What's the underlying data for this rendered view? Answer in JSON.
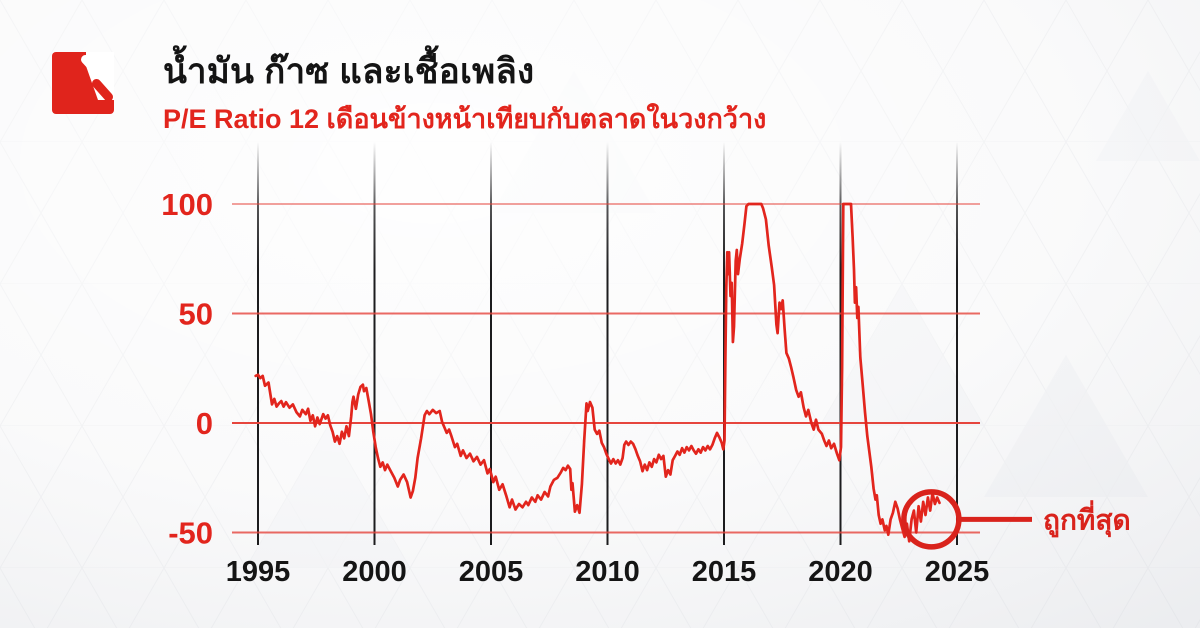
{
  "header": {
    "title": "น้ำมัน ก๊าซ และเชื้อเพลิง",
    "subtitle": "P/E Ratio 12 เดือนข้างหน้าเทียบกับตลาดในวงกว้าง"
  },
  "logo": {
    "name": "brand-logo-red-square-with-slashes"
  },
  "colors": {
    "accent_red": "#e2251d",
    "series_red": "#e2251d",
    "grid_red": "#e6453d",
    "annotation_red": "#d9231c",
    "axis_line_black": "#1c1c1e",
    "tick_label_black": "#151515",
    "title_black": "#141414"
  },
  "chart_data": {
    "type": "line",
    "title": "น้ำมัน ก๊าซ และเชื้อเพลิง",
    "subtitle": "P/E Ratio 12 เดือนข้างหน้าเทียบกับตลาดในวงกว้าง",
    "xlabel": "",
    "ylabel": "",
    "x_ticks": [
      1995,
      2000,
      2005,
      2010,
      2015,
      2020,
      2025
    ],
    "y_ticks": [
      100,
      50,
      0,
      -50
    ],
    "xlim": [
      1993.8,
      2026
    ],
    "ylim": [
      -58,
      108
    ],
    "grid": "horizontal red lines at y ticks, vertical black lines at x ticks",
    "legend_position": "none",
    "annotation": {
      "label": "ถูกที่สุด",
      "circle_center": {
        "year": 2023.9,
        "value": -44
      }
    },
    "series": [
      {
        "name": "P/E Ratio 12M forward relative to broad market (%)",
        "points": [
          [
            1994.9,
            21.5
          ],
          [
            1995,
            22
          ],
          [
            1995.1,
            20.5
          ],
          [
            1995.2,
            21.5
          ],
          [
            1995.3,
            17
          ],
          [
            1995.45,
            18.5
          ],
          [
            1995.6,
            8.5
          ],
          [
            1995.7,
            11
          ],
          [
            1995.8,
            7.5
          ],
          [
            1995.9,
            9
          ],
          [
            1996,
            10
          ],
          [
            1996.1,
            7.5
          ],
          [
            1996.2,
            9.5
          ],
          [
            1996.35,
            7
          ],
          [
            1996.5,
            8.5
          ],
          [
            1996.65,
            5
          ],
          [
            1996.8,
            3
          ],
          [
            1996.9,
            6
          ],
          [
            1997.05,
            4
          ],
          [
            1997.15,
            6.5
          ],
          [
            1997.25,
            1
          ],
          [
            1997.35,
            3.5
          ],
          [
            1997.45,
            -1.5
          ],
          [
            1997.55,
            2.5
          ],
          [
            1997.65,
            -0.5
          ],
          [
            1997.8,
            4
          ],
          [
            1997.9,
            2
          ],
          [
            1998,
            3.5
          ],
          [
            1998.1,
            -1
          ],
          [
            1998.2,
            -4
          ],
          [
            1998.3,
            -8.5
          ],
          [
            1998.4,
            -6
          ],
          [
            1998.5,
            -9.5
          ],
          [
            1998.6,
            -4
          ],
          [
            1998.7,
            -7
          ],
          [
            1998.8,
            -1.5
          ],
          [
            1998.9,
            -6
          ],
          [
            1999,
            3
          ],
          [
            1999.05,
            9.5
          ],
          [
            1999.1,
            12
          ],
          [
            1999.2,
            6.5
          ],
          [
            1999.3,
            13
          ],
          [
            1999.4,
            16.5
          ],
          [
            1999.5,
            17.5
          ],
          [
            1999.55,
            14.5
          ],
          [
            1999.65,
            16
          ],
          [
            1999.75,
            10
          ],
          [
            1999.85,
            4
          ],
          [
            1999.95,
            -4
          ],
          [
            2000.05,
            -11
          ],
          [
            2000.15,
            -16
          ],
          [
            2000.25,
            -20
          ],
          [
            2000.35,
            -18
          ],
          [
            2000.45,
            -21.5
          ],
          [
            2000.55,
            -19
          ],
          [
            2000.7,
            -22
          ],
          [
            2000.85,
            -25
          ],
          [
            2001,
            -29
          ],
          [
            2001.1,
            -26
          ],
          [
            2001.25,
            -23.5
          ],
          [
            2001.4,
            -27
          ],
          [
            2001.55,
            -34
          ],
          [
            2001.65,
            -31
          ],
          [
            2001.75,
            -25
          ],
          [
            2001.85,
            -16
          ],
          [
            2002,
            -7
          ],
          [
            2002.15,
            3.5
          ],
          [
            2002.25,
            5.5
          ],
          [
            2002.35,
            4
          ],
          [
            2002.5,
            6
          ],
          [
            2002.65,
            4.5
          ],
          [
            2002.8,
            5.5
          ],
          [
            2002.9,
            0.5
          ],
          [
            2003,
            -2
          ],
          [
            2003.1,
            -4.5
          ],
          [
            2003.2,
            -3
          ],
          [
            2003.3,
            -6
          ],
          [
            2003.45,
            -11
          ],
          [
            2003.55,
            -9.5
          ],
          [
            2003.7,
            -15
          ],
          [
            2003.8,
            -12.5
          ],
          [
            2003.95,
            -16
          ],
          [
            2004.1,
            -14
          ],
          [
            2004.25,
            -17.5
          ],
          [
            2004.4,
            -15.5
          ],
          [
            2004.55,
            -19
          ],
          [
            2004.7,
            -17
          ],
          [
            2004.85,
            -23
          ],
          [
            2004.95,
            -21
          ],
          [
            2005.1,
            -27
          ],
          [
            2005.2,
            -24.5
          ],
          [
            2005.35,
            -30.5
          ],
          [
            2005.5,
            -28
          ],
          [
            2005.65,
            -33
          ],
          [
            2005.8,
            -38.5
          ],
          [
            2005.9,
            -35
          ],
          [
            2006.05,
            -39.5
          ],
          [
            2006.2,
            -37
          ],
          [
            2006.35,
            -38.5
          ],
          [
            2006.5,
            -36
          ],
          [
            2006.6,
            -37.5
          ],
          [
            2006.75,
            -34
          ],
          [
            2006.9,
            -36
          ],
          [
            2007,
            -33
          ],
          [
            2007.15,
            -35
          ],
          [
            2007.3,
            -31.5
          ],
          [
            2007.45,
            -33.5
          ],
          [
            2007.55,
            -29
          ],
          [
            2007.7,
            -26
          ],
          [
            2007.85,
            -25
          ],
          [
            2008,
            -22.5
          ],
          [
            2008.1,
            -20.5
          ],
          [
            2008.2,
            -21.5
          ],
          [
            2008.3,
            -19.5
          ],
          [
            2008.4,
            -21
          ],
          [
            2008.45,
            -30.5
          ],
          [
            2008.5,
            -27.5
          ],
          [
            2008.6,
            -40.5
          ],
          [
            2008.7,
            -37.5
          ],
          [
            2008.8,
            -41
          ],
          [
            2008.9,
            -28
          ],
          [
            2009,
            -8
          ],
          [
            2009.1,
            9
          ],
          [
            2009.15,
            5.5
          ],
          [
            2009.25,
            9.6
          ],
          [
            2009.35,
            7
          ],
          [
            2009.45,
            -3
          ],
          [
            2009.55,
            -5
          ],
          [
            2009.65,
            -3.5
          ],
          [
            2009.75,
            -9
          ],
          [
            2009.85,
            -11
          ],
          [
            2009.95,
            -14
          ],
          [
            2010.05,
            -16.5
          ],
          [
            2010.15,
            -18.5
          ],
          [
            2010.25,
            -16.5
          ],
          [
            2010.35,
            -18.5
          ],
          [
            2010.45,
            -17
          ],
          [
            2010.55,
            -19
          ],
          [
            2010.65,
            -16
          ],
          [
            2010.72,
            -10
          ],
          [
            2010.8,
            -8.5
          ],
          [
            2010.9,
            -10
          ],
          [
            2011,
            -8.5
          ],
          [
            2011.1,
            -9.5
          ],
          [
            2011.2,
            -12
          ],
          [
            2011.3,
            -15
          ],
          [
            2011.4,
            -17.5
          ],
          [
            2011.5,
            -22
          ],
          [
            2011.6,
            -19
          ],
          [
            2011.7,
            -21.5
          ],
          [
            2011.8,
            -18
          ],
          [
            2011.9,
            -20
          ],
          [
            2012,
            -16.5
          ],
          [
            2012.1,
            -18
          ],
          [
            2012.2,
            -14.5
          ],
          [
            2012.3,
            -16.5
          ],
          [
            2012.4,
            -15
          ],
          [
            2012.5,
            -24.5
          ],
          [
            2012.6,
            -21.5
          ],
          [
            2012.7,
            -23.5
          ],
          [
            2012.8,
            -17
          ],
          [
            2012.9,
            -15
          ],
          [
            2013,
            -13
          ],
          [
            2013.1,
            -14.5
          ],
          [
            2013.2,
            -11.5
          ],
          [
            2013.3,
            -13.5
          ],
          [
            2013.4,
            -11
          ],
          [
            2013.5,
            -12.5
          ],
          [
            2013.6,
            -10.5
          ],
          [
            2013.7,
            -12.5
          ],
          [
            2013.8,
            -14
          ],
          [
            2013.9,
            -12
          ],
          [
            2014,
            -13.5
          ],
          [
            2014.1,
            -11
          ],
          [
            2014.2,
            -12.5
          ],
          [
            2014.3,
            -10.5
          ],
          [
            2014.4,
            -12
          ],
          [
            2014.5,
            -10
          ],
          [
            2014.6,
            -7
          ],
          [
            2014.7,
            -4.5
          ],
          [
            2014.8,
            -6.5
          ],
          [
            2014.9,
            -9
          ],
          [
            2014.97,
            -12
          ],
          [
            2015.02,
            -8
          ],
          [
            2015.06,
            30
          ],
          [
            2015.1,
            62
          ],
          [
            2015.14,
            78
          ],
          [
            2015.18,
            68
          ],
          [
            2015.22,
            78
          ],
          [
            2015.28,
            58
          ],
          [
            2015.33,
            64
          ],
          [
            2015.38,
            37
          ],
          [
            2015.43,
            44
          ],
          [
            2015.5,
            74
          ],
          [
            2015.55,
            79
          ],
          [
            2015.6,
            68
          ],
          [
            2015.68,
            75
          ],
          [
            2015.78,
            82
          ],
          [
            2015.88,
            91
          ],
          [
            2015.96,
            99
          ],
          [
            2016.05,
            100
          ],
          [
            2016.2,
            100
          ],
          [
            2016.4,
            100
          ],
          [
            2016.6,
            100
          ],
          [
            2016.68,
            98
          ],
          [
            2016.8,
            93
          ],
          [
            2016.92,
            81
          ],
          [
            2017.05,
            71
          ],
          [
            2017.15,
            63
          ],
          [
            2017.25,
            45
          ],
          [
            2017.3,
            41
          ],
          [
            2017.38,
            55
          ],
          [
            2017.45,
            52
          ],
          [
            2017.52,
            56
          ],
          [
            2017.6,
            43
          ],
          [
            2017.68,
            32
          ],
          [
            2017.78,
            29.5
          ],
          [
            2017.88,
            25.5
          ],
          [
            2017.98,
            21
          ],
          [
            2018.1,
            15
          ],
          [
            2018.2,
            12
          ],
          [
            2018.3,
            14
          ],
          [
            2018.42,
            7
          ],
          [
            2018.52,
            3
          ],
          [
            2018.62,
            6
          ],
          [
            2018.75,
            0
          ],
          [
            2018.85,
            -3
          ],
          [
            2018.95,
            1.5
          ],
          [
            2019.05,
            -3
          ],
          [
            2019.2,
            -5
          ],
          [
            2019.3,
            -8
          ],
          [
            2019.4,
            -10.5
          ],
          [
            2019.5,
            -8
          ],
          [
            2019.6,
            -11.5
          ],
          [
            2019.72,
            -9.5
          ],
          [
            2019.85,
            -14
          ],
          [
            2019.95,
            -17
          ],
          [
            2020.02,
            -11
          ],
          [
            2020.07,
            25
          ],
          [
            2020.12,
            100
          ],
          [
            2020.3,
            100
          ],
          [
            2020.45,
            100
          ],
          [
            2020.52,
            85
          ],
          [
            2020.58,
            70
          ],
          [
            2020.62,
            55
          ],
          [
            2020.67,
            62
          ],
          [
            2020.72,
            48
          ],
          [
            2020.77,
            53
          ],
          [
            2020.85,
            30
          ],
          [
            2020.95,
            18
          ],
          [
            2021.05,
            5
          ],
          [
            2021.15,
            -6
          ],
          [
            2021.25,
            -14
          ],
          [
            2021.32,
            -20
          ],
          [
            2021.42,
            -30
          ],
          [
            2021.5,
            -35
          ],
          [
            2021.56,
            -33
          ],
          [
            2021.64,
            -42
          ],
          [
            2021.72,
            -46
          ],
          [
            2021.8,
            -44
          ],
          [
            2021.9,
            -49
          ],
          [
            2021.97,
            -47
          ],
          [
            2022.05,
            -51
          ],
          [
            2022.15,
            -44
          ],
          [
            2022.25,
            -41
          ],
          [
            2022.35,
            -36
          ],
          [
            2022.45,
            -39
          ],
          [
            2022.55,
            -44
          ],
          [
            2022.65,
            -48
          ],
          [
            2022.75,
            -52
          ],
          [
            2022.85,
            -46
          ],
          [
            2022.95,
            -54
          ],
          [
            2023.05,
            -44
          ],
          [
            2023.15,
            -40
          ],
          [
            2023.25,
            -50
          ],
          [
            2023.35,
            -38
          ],
          [
            2023.45,
            -45
          ],
          [
            2023.55,
            -36
          ],
          [
            2023.65,
            -42
          ],
          [
            2023.75,
            -34
          ],
          [
            2023.85,
            -40
          ],
          [
            2023.95,
            -32
          ],
          [
            2024.05,
            -37
          ],
          [
            2024.15,
            -34
          ],
          [
            2024.25,
            -36.5
          ]
        ]
      }
    ]
  }
}
